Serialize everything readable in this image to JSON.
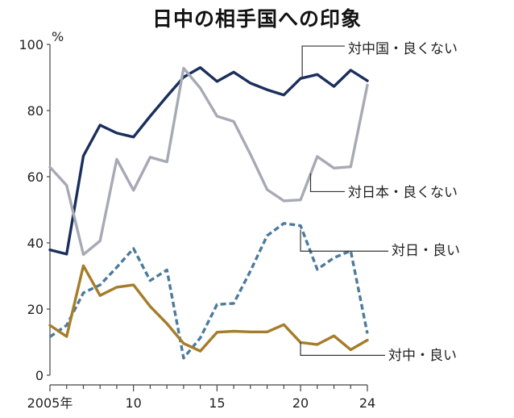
{
  "chart_data": {
    "type": "line",
    "title": "日中の相手国への印象",
    "y_unit": "%",
    "ylim": [
      0,
      100
    ],
    "yticks": [
      0,
      20,
      40,
      60,
      80,
      100
    ],
    "xlim": [
      2005,
      2024
    ],
    "xticks": [
      {
        "value": 2005,
        "label": "2005年"
      },
      {
        "value": 2010,
        "label": "10"
      },
      {
        "value": 2015,
        "label": "15"
      },
      {
        "value": 2020,
        "label": "20"
      },
      {
        "value": 2024,
        "label": "24"
      }
    ],
    "x": [
      2005,
      2006,
      2007,
      2008,
      2009,
      2010,
      2011,
      2012,
      2013,
      2014,
      2015,
      2016,
      2017,
      2018,
      2019,
      2020,
      2021,
      2022,
      2023,
      2024
    ],
    "series": [
      {
        "name": "対中国・良くない",
        "color": "#1b2f5b",
        "dash": "solid",
        "values": [
          37.9,
          36.6,
          66.3,
          75.6,
          73.2,
          72.0,
          78.3,
          84.3,
          90.1,
          93.0,
          88.8,
          91.6,
          88.3,
          86.3,
          84.7,
          89.7,
          90.9,
          87.3,
          92.2,
          89.0
        ]
      },
      {
        "name": "対日本・良くない",
        "color": "#a7aab5",
        "dash": "solid",
        "values": [
          62.9,
          57.4,
          36.5,
          40.6,
          65.3,
          55.9,
          65.9,
          64.5,
          92.8,
          86.8,
          78.3,
          76.7,
          66.8,
          56.1,
          52.7,
          53.0,
          66.1,
          62.6,
          63.0,
          87.7
        ]
      },
      {
        "name": "対日・良い",
        "color": "#4d7a9b",
        "dash": "dashed",
        "values": [
          11.6,
          15.1,
          24.9,
          27.3,
          32.6,
          38.3,
          28.6,
          31.8,
          5.2,
          11.3,
          21.4,
          21.7,
          31.5,
          42.2,
          45.9,
          45.2,
          32.0,
          35.5,
          37.6,
          12.6
        ]
      },
      {
        "name": "対中・良い",
        "color": "#a57d2a",
        "dash": "solid",
        "values": [
          15.1,
          11.7,
          33.1,
          24.1,
          26.6,
          27.3,
          20.8,
          15.6,
          9.6,
          7.3,
          13.0,
          13.3,
          13.1,
          13.1,
          15.3,
          9.9,
          9.3,
          11.9,
          7.7,
          10.6
        ]
      }
    ]
  }
}
